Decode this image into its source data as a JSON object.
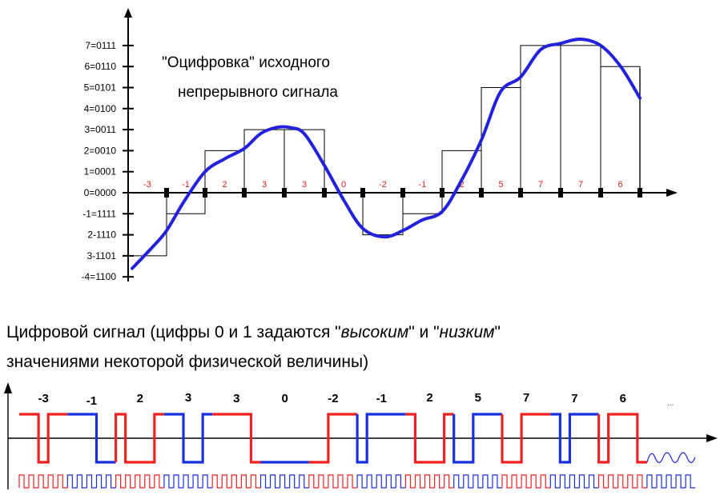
{
  "chart_data": {
    "type": "line",
    "title": "\"Оцифровка\" исходного",
    "subtitle": "непрерывного сигнала",
    "y_tick_labels": [
      "7=0111",
      "6=0110",
      "5=0101",
      "4=0100",
      "3=0011",
      "2=0010",
      "1=0001",
      "0=0000",
      "-1=1111",
      "2-1110",
      "3-1101",
      "-4=1100"
    ],
    "ylim": [
      -4,
      7
    ],
    "samples": [
      -3,
      -1,
      2,
      3,
      3,
      0,
      -2,
      -1,
      2,
      5,
      7,
      7,
      6
    ],
    "sample_labels": [
      "-3",
      "-1",
      "2",
      "3",
      "3",
      "0",
      "-2",
      "-1",
      "2",
      "5",
      "7",
      "7",
      "6"
    ],
    "series": [
      {
        "name": "",
        "values": [
          -3.6,
          -1.9,
          1.0,
          2.0,
          3.1,
          1.3,
          -2.1,
          -1.0,
          1.4,
          4.8,
          7.0,
          7.3,
          4.5
        ]
      }
    ],
    "colors": {
      "analog": "#2222dd",
      "quant_labels": "#e02020",
      "steps": "#000000"
    }
  },
  "caption": {
    "line1_a": "Цифровой сигнал (цифры 0 и 1 задаются \"",
    "line1_b": "высоким",
    "line1_c": "\" и \"",
    "line1_d": "низким",
    "line1_e": "\"",
    "line2": "значениями некоторой физической величины)"
  },
  "digital": {
    "labels": [
      "-3",
      "-1",
      "2",
      "3",
      "3",
      "0",
      "-2",
      "-1",
      "2",
      "5",
      "7",
      "7",
      "6"
    ],
    "ellipsis": "...",
    "bits": "11011111001000111001111100000000111011111000100111001111011101110",
    "colors": {
      "a": "#ee2222",
      "b": "#1a2fe0"
    }
  }
}
